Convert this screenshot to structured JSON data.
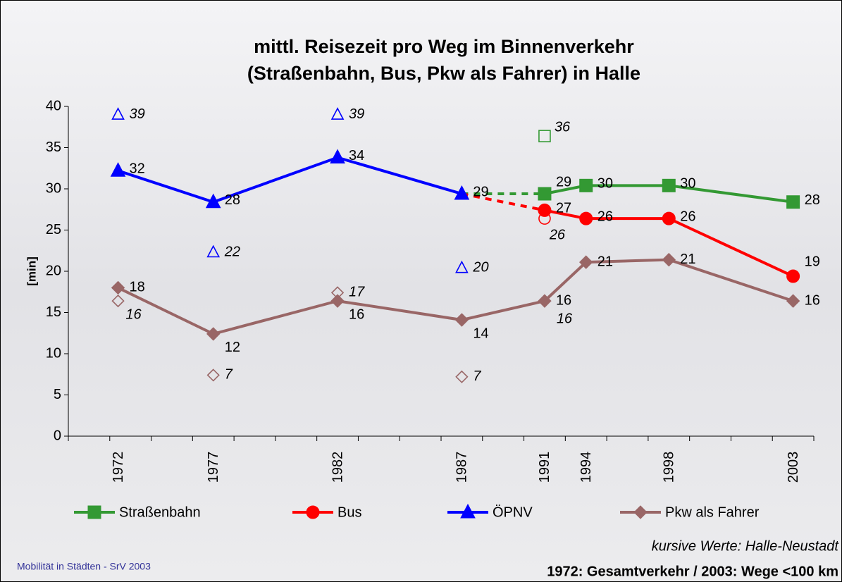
{
  "chart_data": {
    "type": "line",
    "title": "mittl. Reisezeit pro Weg im Binnenverkehr",
    "subtitle": "(Straßenbahn, Bus, Pkw als Fahrer) in Halle",
    "y_label": "[min]",
    "categories": [
      "1972",
      "1977",
      "1982",
      "1987",
      "1991",
      "1994",
      "1998",
      "2003"
    ],
    "ylim": [
      0,
      40
    ],
    "yticks": [
      0,
      5,
      10,
      15,
      20,
      25,
      30,
      35,
      40
    ],
    "grid": false,
    "series": [
      {
        "name": "Straßenbahn",
        "color": "#339933",
        "marker": "square",
        "values": [
          null,
          null,
          null,
          null,
          29.4,
          30.4,
          30.4,
          28.4
        ],
        "value_labels": [
          null,
          null,
          null,
          null,
          "29",
          "30",
          "30",
          "28"
        ],
        "values_neustadt": [
          null,
          null,
          null,
          null,
          36.4,
          null,
          null,
          null
        ],
        "value_labels_neustadt": [
          null,
          null,
          null,
          null,
          "36",
          null,
          null,
          null
        ]
      },
      {
        "name": "Bus",
        "color": "#ff0000",
        "marker": "circle",
        "values": [
          null,
          null,
          null,
          null,
          27.4,
          26.4,
          26.4,
          19.4
        ],
        "value_labels": [
          null,
          null,
          null,
          null,
          "27",
          "26",
          "26",
          "19"
        ],
        "values_neustadt": [
          null,
          null,
          null,
          null,
          26.4,
          null,
          null,
          null
        ],
        "value_labels_neustadt": [
          null,
          null,
          null,
          null,
          "26",
          null,
          null,
          null
        ]
      },
      {
        "name": "ÖPNV",
        "color": "#0000ff",
        "marker": "triangle",
        "values": [
          32.2,
          28.4,
          33.8,
          29.4,
          null,
          null,
          null,
          null
        ],
        "value_labels": [
          "32",
          "28",
          "34",
          "29",
          null,
          null,
          null,
          null
        ],
        "values_neustadt": [
          39,
          22.3,
          39,
          20.4,
          null,
          null,
          null,
          null
        ],
        "value_labels_neustadt": [
          "39",
          "22",
          "39",
          "20",
          null,
          null,
          null,
          null
        ]
      },
      {
        "name": "Pkw als Fahrer",
        "color": "#996666",
        "marker": "diamond",
        "values": [
          18,
          12.4,
          16.4,
          14.1,
          16.4,
          21.1,
          21.4,
          16.4
        ],
        "value_labels": [
          "18",
          "12",
          "16",
          "14",
          "16",
          "21",
          "21",
          "16"
        ],
        "values_neustadt": [
          16.4,
          7.4,
          17.4,
          7.2,
          16.4,
          null,
          null,
          null
        ],
        "value_labels_neustadt": [
          "16",
          "7",
          "17",
          "7",
          "16",
          null,
          null,
          null
        ]
      }
    ],
    "note_italic": "kursive  Werte: Halle-Neustadt",
    "note_bold": "1972: Gesamtverkehr / 2003: Wege <100 km",
    "footer": "Mobilität in Städten - SrV 2003"
  }
}
